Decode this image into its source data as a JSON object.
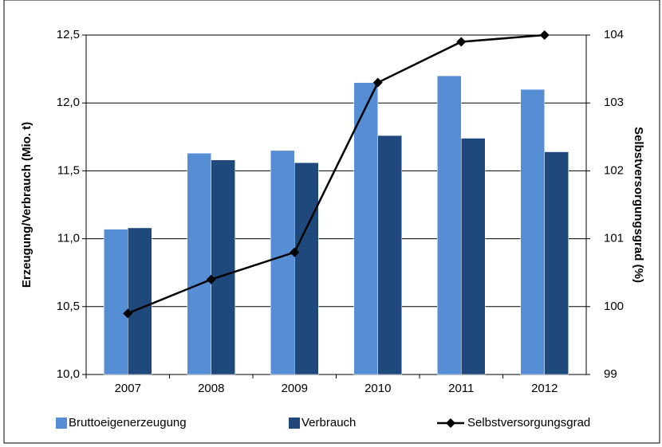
{
  "chart_data": {
    "type": "bar",
    "categories": [
      "2007",
      "2008",
      "2009",
      "2010",
      "2011",
      "2012"
    ],
    "series": [
      {
        "name": "Bruttoeigenerzeugung",
        "color": "#558ed5",
        "values": [
          11.07,
          11.63,
          11.65,
          12.15,
          12.2,
          12.1
        ]
      },
      {
        "name": "Verbrauch",
        "color": "#1f497d",
        "values": [
          11.08,
          11.58,
          11.56,
          11.76,
          11.74,
          11.64
        ]
      },
      {
        "name": "Selbstversorgungsgrad",
        "color": "#000000",
        "type": "line",
        "axis": "y2",
        "values": [
          99.9,
          100.4,
          100.8,
          103.3,
          103.9,
          104.0
        ]
      }
    ],
    "ylabel": "Erzeugung/Verbrauch (Mio. t)",
    "y2label": "Selbstversorgungsgrad (%)",
    "ylim": [
      10,
      12.5
    ],
    "yticks": [
      {
        "value": 10,
        "label": "10,0"
      },
      {
        "value": 10.5,
        "label": "10,5"
      },
      {
        "value": 11,
        "label": "11,0"
      },
      {
        "value": 11.5,
        "label": "11,5"
      },
      {
        "value": 12,
        "label": "12,0"
      },
      {
        "value": 12.5,
        "label": "12,5"
      }
    ],
    "y2lim": [
      99,
      104
    ],
    "y2ticks": [
      99,
      100,
      101,
      102,
      103,
      104
    ],
    "grid": true,
    "legend": "bottom"
  }
}
